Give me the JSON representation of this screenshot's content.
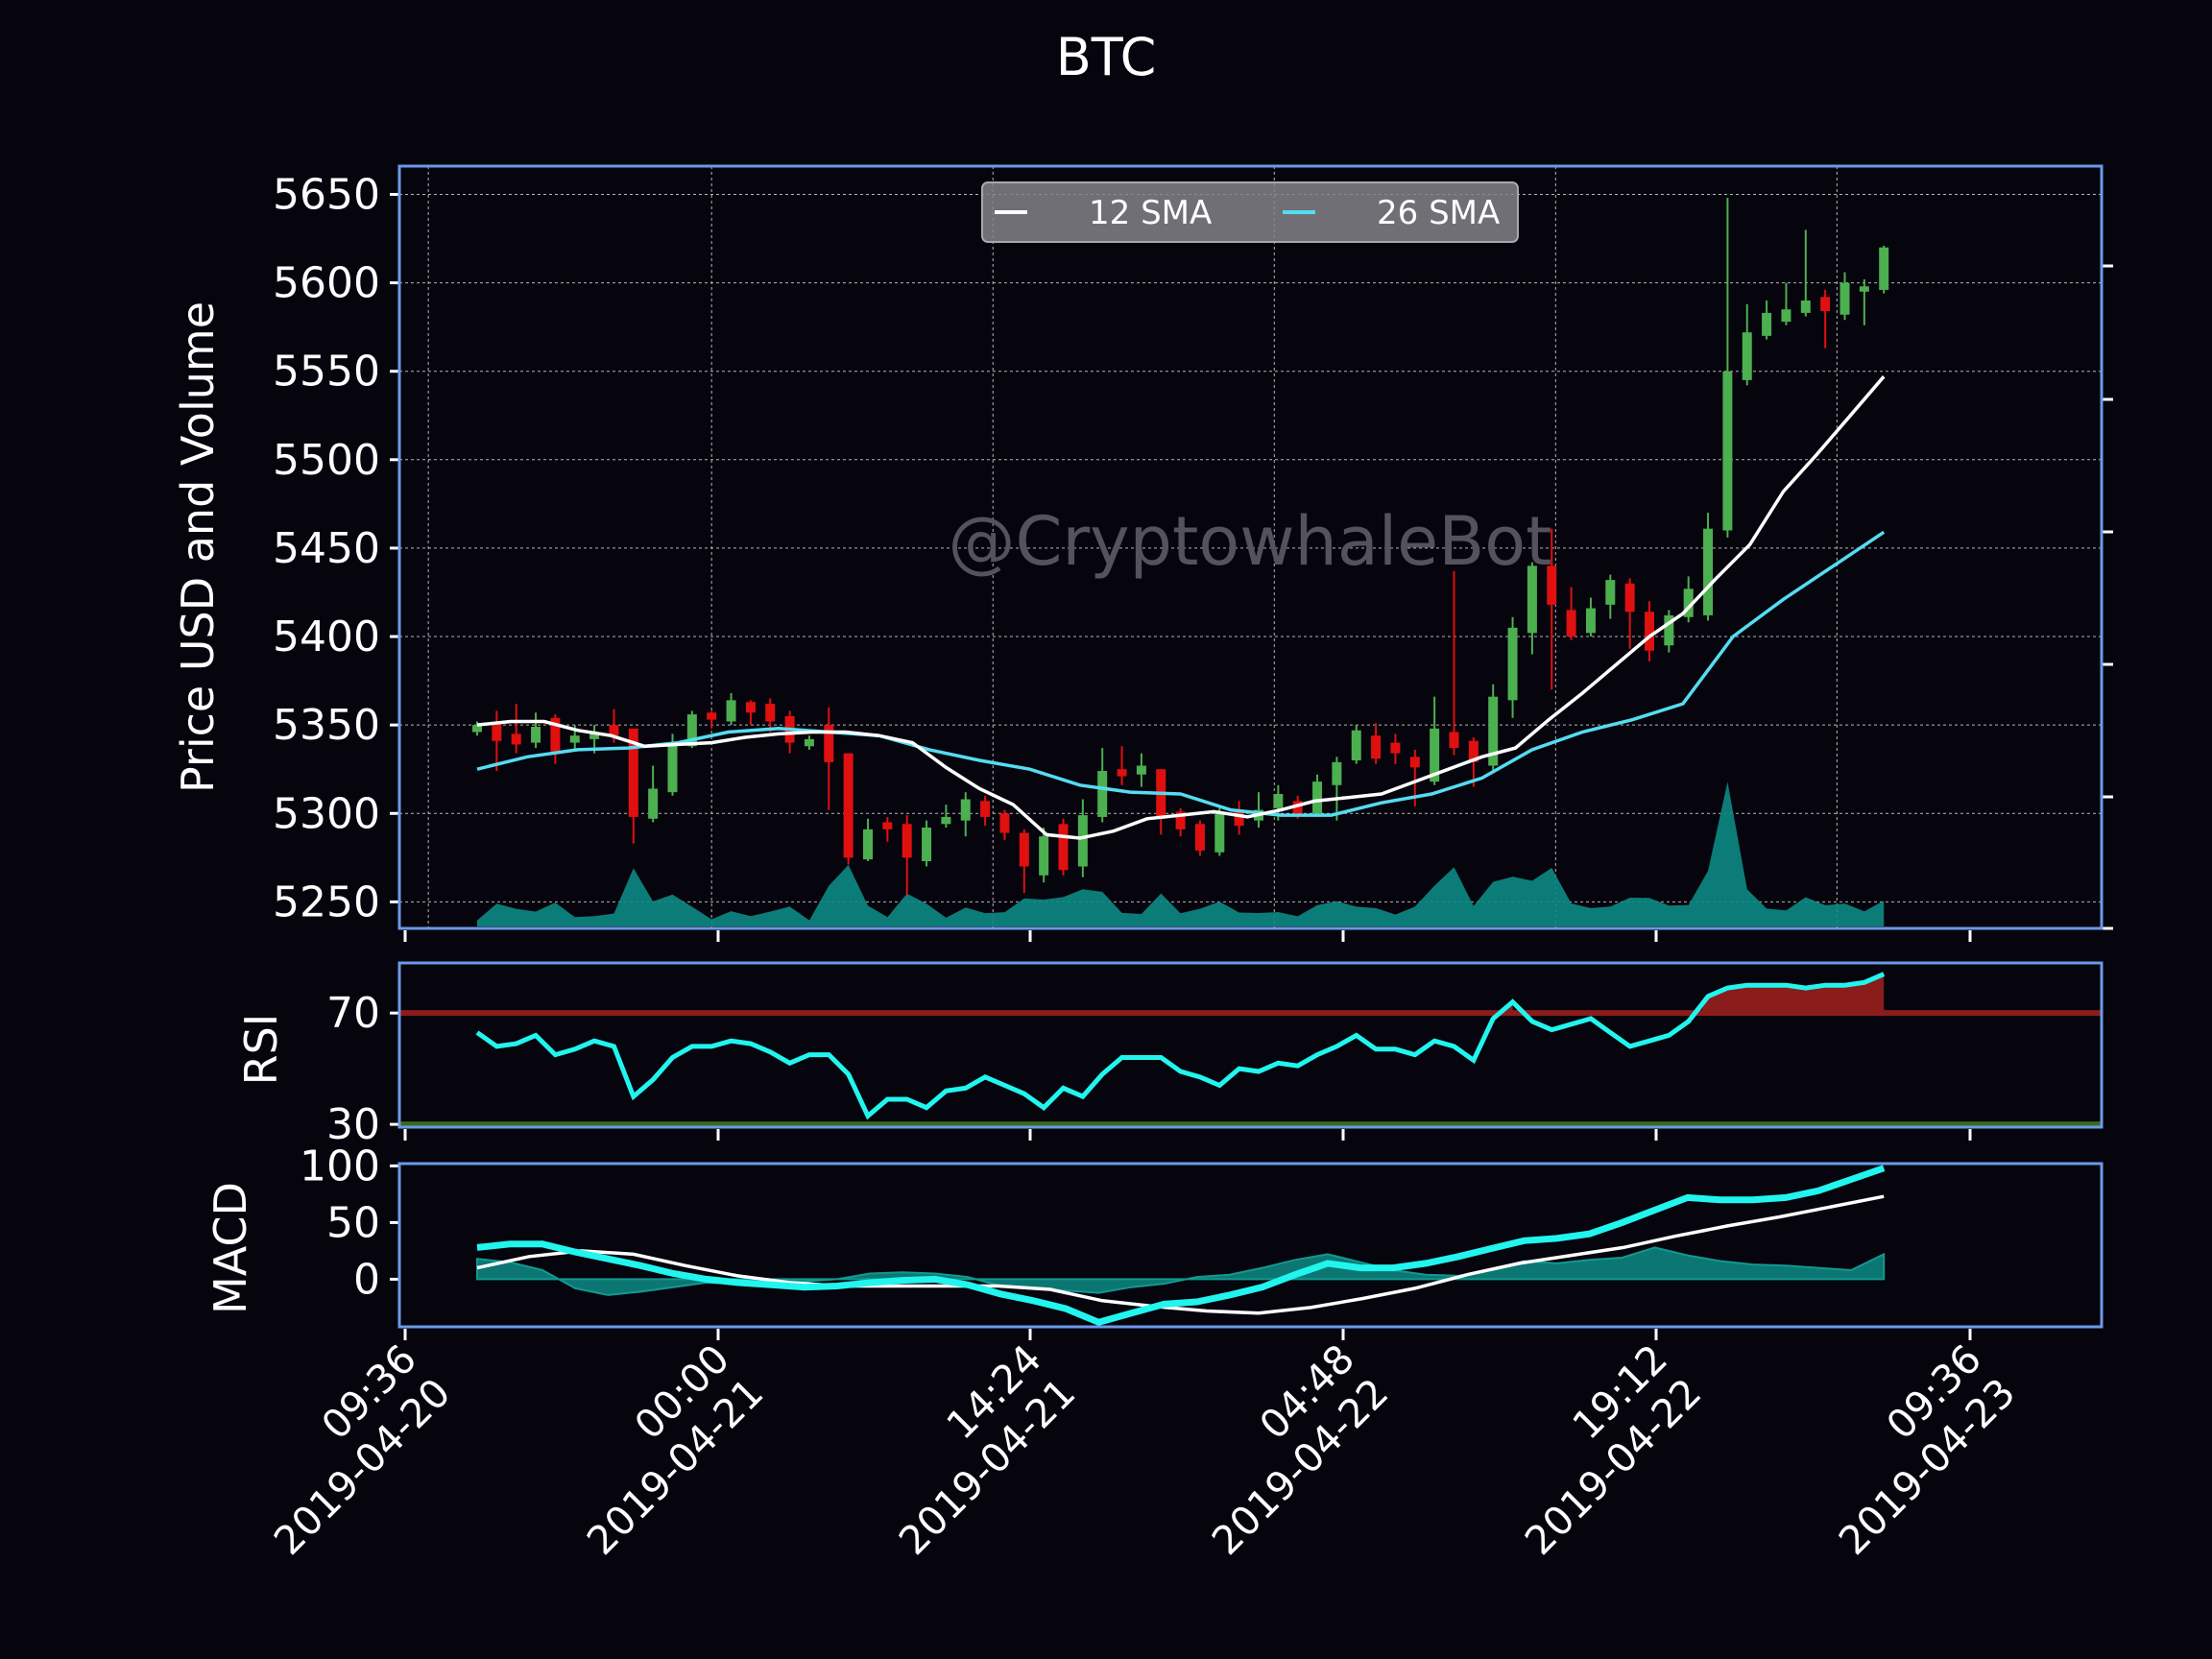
{
  "chart_data": [
    {
      "panel": "price",
      "type": "candlestick",
      "title": "BTC",
      "ylabel": "Price USD and Volume",
      "watermark": "@CryptowhaleBot",
      "ylim": [
        5235,
        5666
      ],
      "yticks": [
        5250,
        5300,
        5350,
        5400,
        5450,
        5500,
        5550,
        5600,
        5650
      ],
      "grid": true,
      "legend": {
        "placement": "top-center",
        "entries": [
          "12 SMA",
          "26 SMA"
        ]
      },
      "colors": {
        "up": "#4caf50",
        "down": "#e01010",
        "sma12": "#ffffff",
        "sma26": "#55dcf0",
        "volume": "#0d8a84",
        "frame": "#6a9ae8"
      },
      "x_start": "2019-04-20 12:00",
      "interval_minutes": 60,
      "candles": [
        [
          5346,
          5350,
          5352,
          5344
        ],
        [
          5351,
          5341,
          5358,
          5324
        ],
        [
          5345,
          5339,
          5362,
          5334
        ],
        [
          5340,
          5349,
          5357,
          5337
        ],
        [
          5354,
          5335,
          5356,
          5328
        ],
        [
          5340,
          5344,
          5350,
          5336
        ],
        [
          5342,
          5346,
          5350,
          5334
        ],
        [
          5350,
          5344,
          5359,
          5340
        ],
        [
          5348,
          5298,
          5348,
          5283
        ],
        [
          5297,
          5314,
          5327,
          5295
        ],
        [
          5312,
          5340,
          5345,
          5310
        ],
        [
          5338,
          5356,
          5358,
          5337
        ],
        [
          5357,
          5353,
          5358,
          5348
        ],
        [
          5352,
          5364,
          5368,
          5350
        ],
        [
          5363,
          5357,
          5364,
          5350
        ],
        [
          5362,
          5352,
          5365,
          5346
        ],
        [
          5355,
          5340,
          5358,
          5334
        ],
        [
          5338,
          5342,
          5344,
          5336
        ],
        [
          5350,
          5329,
          5360,
          5302
        ],
        [
          5334,
          5275,
          5334,
          5271
        ],
        [
          5274,
          5291,
          5297,
          5273
        ],
        [
          5295,
          5291,
          5298,
          5284
        ],
        [
          5294,
          5275,
          5299,
          5254
        ],
        [
          5273,
          5292,
          5296,
          5270
        ],
        [
          5294,
          5298,
          5305,
          5292
        ],
        [
          5296,
          5308,
          5312,
          5287
        ],
        [
          5307,
          5298,
          5310,
          5293
        ],
        [
          5300,
          5289,
          5302,
          5285
        ],
        [
          5289,
          5270,
          5291,
          5255
        ],
        [
          5265,
          5287,
          5292,
          5261
        ],
        [
          5294,
          5268,
          5297,
          5265
        ],
        [
          5270,
          5299,
          5308,
          5264
        ],
        [
          5298,
          5324,
          5337,
          5295
        ],
        [
          5325,
          5321,
          5338,
          5316
        ],
        [
          5322,
          5327,
          5334,
          5315
        ],
        [
          5325,
          5297,
          5325,
          5288
        ],
        [
          5301,
          5291,
          5303,
          5287
        ],
        [
          5294,
          5279,
          5296,
          5276
        ],
        [
          5278,
          5300,
          5303,
          5276
        ],
        [
          5301,
          5293,
          5307,
          5288
        ],
        [
          5296,
          5302,
          5312,
          5292
        ],
        [
          5303,
          5311,
          5316,
          5296
        ],
        [
          5307,
          5300,
          5310,
          5297
        ],
        [
          5300,
          5318,
          5322,
          5298
        ],
        [
          5316,
          5329,
          5332,
          5296
        ],
        [
          5330,
          5347,
          5350,
          5328
        ],
        [
          5344,
          5331,
          5351,
          5328
        ],
        [
          5340,
          5334,
          5345,
          5328
        ],
        [
          5332,
          5326,
          5336,
          5304
        ],
        [
          5318,
          5348,
          5366,
          5316
        ],
        [
          5346,
          5337,
          5437,
          5333
        ],
        [
          5341,
          5329,
          5343,
          5315
        ],
        [
          5327,
          5366,
          5373,
          5324
        ],
        [
          5364,
          5405,
          5411,
          5354
        ],
        [
          5402,
          5440,
          5442,
          5390
        ],
        [
          5440,
          5418,
          5461,
          5370
        ],
        [
          5415,
          5400,
          5428,
          5398
        ],
        [
          5402,
          5416,
          5422,
          5400
        ],
        [
          5418,
          5432,
          5435,
          5410
        ],
        [
          5430,
          5414,
          5433,
          5393
        ],
        [
          5414,
          5392,
          5420,
          5386
        ],
        [
          5395,
          5412,
          5415,
          5391
        ],
        [
          5411,
          5427,
          5434,
          5408
        ],
        [
          5412,
          5461,
          5470,
          5409
        ],
        [
          5460,
          5550,
          5648,
          5456
        ],
        [
          5545,
          5572,
          5588,
          5542
        ],
        [
          5570,
          5583,
          5590,
          5568
        ],
        [
          5578,
          5585,
          5600,
          5576
        ],
        [
          5583,
          5590,
          5630,
          5581
        ],
        [
          5592,
          5584,
          5596,
          5563
        ],
        [
          5582,
          5600,
          5606,
          5579
        ],
        [
          5595,
          5598,
          5602,
          5576
        ],
        [
          5596,
          5620,
          5621,
          5594
        ]
      ],
      "sma12": [
        5350,
        5352,
        5352,
        5347,
        5344,
        5338,
        5339,
        5340,
        5343,
        5345,
        5346,
        5346,
        5344,
        5340,
        5326,
        5314,
        5305,
        5288,
        5286,
        5290,
        5297,
        5299,
        5301,
        5298,
        5302,
        5307,
        5309,
        5311,
        5318,
        5325,
        5332,
        5337,
        5353,
        5368,
        5384,
        5400,
        5413,
        5433,
        5452,
        5482,
        5503,
        5525,
        5547
      ],
      "sma26": [
        5325,
        5332,
        5336,
        5337,
        5340,
        5346,
        5348,
        5346,
        5344,
        5336,
        5330,
        5325,
        5316,
        5312,
        5311,
        5302,
        5299,
        5299,
        5306,
        5311,
        5320,
        5336,
        5346,
        5353,
        5362,
        5400,
        5421,
        5440,
        5459
      ]
    },
    {
      "panel": "rsi",
      "type": "line",
      "ylabel": "RSI",
      "ylim": [
        29,
        88
      ],
      "yticks": [
        30,
        70
      ],
      "thresholds": {
        "overbought": 70,
        "oversold": 30
      },
      "colors": {
        "line": "#21f5ee",
        "overbought": "#8b1c1c",
        "oversold": "#3a6a1c"
      },
      "values": [
        63,
        58,
        59,
        62,
        55,
        57,
        60,
        58,
        40,
        46,
        54,
        58,
        58,
        60,
        59,
        56,
        52,
        55,
        55,
        48,
        33,
        39,
        39,
        36,
        42,
        43,
        47,
        44,
        41,
        36,
        43,
        40,
        48,
        54,
        54,
        54,
        49,
        47,
        44,
        50,
        49,
        52,
        51,
        55,
        58,
        62,
        57,
        57,
        55,
        60,
        58,
        53,
        68,
        74,
        67,
        64,
        66,
        68,
        63,
        58,
        60,
        62,
        67,
        76,
        79,
        80,
        80,
        80,
        79,
        80,
        80,
        81,
        84
      ]
    },
    {
      "panel": "macd",
      "type": "line",
      "ylabel": "MACD",
      "ylim": [
        -42,
        102
      ],
      "yticks": [
        0,
        50,
        100
      ],
      "colors": {
        "macd": "#21f5ee",
        "signal": "#ffffff",
        "histogram": "#0d8a84"
      },
      "macd": [
        28,
        31,
        31,
        24,
        18,
        12,
        5,
        0,
        -3,
        -5,
        -7,
        -6,
        -3,
        -1,
        0,
        -5,
        -13,
        -19,
        -26,
        -38,
        -30,
        -22,
        -20,
        -14,
        -7,
        4,
        14,
        10,
        10,
        14,
        20,
        27,
        34,
        36,
        40,
        50,
        61,
        72,
        70,
        70,
        72,
        78,
        88,
        98
      ],
      "signal": [
        10,
        20,
        25,
        22,
        12,
        3,
        -3,
        -6,
        -6,
        -6,
        -6,
        -9,
        -19,
        -24,
        -28,
        -30,
        -25,
        -17,
        -8,
        4,
        14,
        21,
        28,
        38,
        47,
        55,
        64,
        73
      ],
      "histogram": [
        18,
        15,
        8,
        -8,
        -14,
        -11,
        -7,
        -3,
        -4,
        -2,
        -2,
        0,
        5,
        6,
        5,
        2,
        -6,
        -8,
        -10,
        -12,
        -7,
        -4,
        2,
        4,
        10,
        17,
        22,
        15,
        8,
        4,
        3,
        8,
        16,
        14,
        17,
        19,
        28,
        21,
        16,
        13,
        12,
        10,
        8,
        22
      ]
    }
  ],
  "x_axis": {
    "tick_labels": [
      [
        "09:36",
        "2019-04-20"
      ],
      [
        "00:00",
        "2019-04-21"
      ],
      [
        "14:24",
        "2019-04-21"
      ],
      [
        "04:48",
        "2019-04-22"
      ],
      [
        "19:12",
        "2019-04-22"
      ],
      [
        "09:36",
        "2019-04-23"
      ]
    ]
  }
}
